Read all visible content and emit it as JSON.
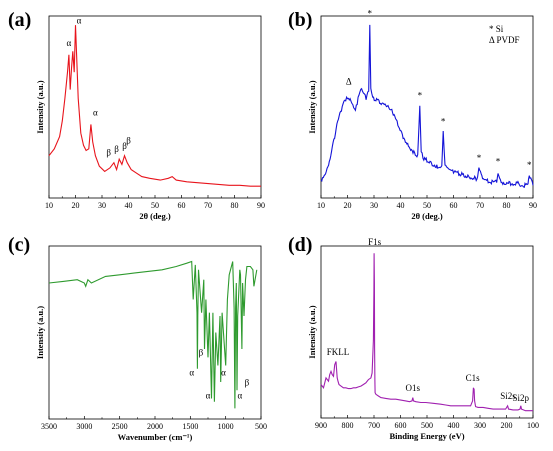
{
  "chart_data": [
    {
      "panel": "(a)",
      "type": "line",
      "xlabel": "2θ (deg.)",
      "ylabel": "Intensity (a.u.)",
      "xlim": [
        10,
        90
      ],
      "xticks": [
        "10",
        "20",
        "30",
        "40",
        "50",
        "60",
        "70",
        "80",
        "90"
      ],
      "color": "#e8141c",
      "series": [
        {
          "x": [
            10,
            12,
            14,
            15,
            16,
            17,
            17.5,
            18,
            18.5,
            19,
            19.5,
            20,
            20.4,
            21,
            22,
            23,
            24,
            25,
            25.8,
            26.5,
            27.5,
            29,
            31,
            33,
            34.5,
            35.5,
            36.5,
            37.5,
            38.5,
            39.5,
            41,
            43,
            45,
            48,
            52,
            55,
            56.5,
            58,
            62,
            66,
            70,
            74,
            78,
            82,
            86,
            90
          ],
          "y": [
            0.22,
            0.26,
            0.33,
            0.42,
            0.55,
            0.7,
            0.8,
            0.6,
            0.72,
            0.82,
            0.7,
            0.97,
            0.8,
            0.55,
            0.35,
            0.28,
            0.25,
            0.26,
            0.4,
            0.3,
            0.22,
            0.16,
            0.13,
            0.15,
            0.18,
            0.14,
            0.2,
            0.17,
            0.22,
            0.18,
            0.14,
            0.12,
            0.1,
            0.09,
            0.08,
            0.09,
            0.1,
            0.08,
            0.07,
            0.065,
            0.06,
            0.055,
            0.05,
            0.05,
            0.045,
            0.045
          ]
        }
      ],
      "annotations": [
        {
          "text": "α",
          "x": 17.5,
          "y": 0.85
        },
        {
          "text": "α",
          "x": 21.3,
          "y": 0.98
        },
        {
          "text": "α",
          "x": 27.5,
          "y": 0.45
        },
        {
          "text": "β",
          "x": 32.5,
          "y": 0.22
        },
        {
          "text": "β",
          "x": 35.5,
          "y": 0.24
        },
        {
          "text": "β",
          "x": 38.5,
          "y": 0.26
        },
        {
          "text": "β",
          "x": 40.0,
          "y": 0.29
        }
      ]
    },
    {
      "panel": "(b)",
      "type": "line",
      "xlabel": "2θ (deg.)",
      "ylabel": "Intensity (a.u.)",
      "xlim": [
        10,
        90
      ],
      "xticks": [
        "10",
        "20",
        "30",
        "40",
        "50",
        "60",
        "70",
        "80",
        "90"
      ],
      "color": "#1414d8",
      "legend": [
        "* Si",
        "Δ PVDF"
      ],
      "series": [
        {
          "x": [
            10,
            12,
            14,
            16,
            18,
            19,
            20,
            21,
            22,
            23,
            24,
            25,
            26,
            27,
            28,
            28.4,
            28.8,
            29.5,
            31,
            33,
            35,
            37,
            39,
            41,
            43,
            45,
            46.5,
            47.3,
            47.8,
            48.5,
            50,
            52,
            54,
            55.6,
            56.1,
            56.8,
            58,
            60,
            62,
            64,
            66,
            68,
            69.1,
            69.6,
            71,
            74,
            76.3,
            76.8,
            78,
            81,
            84,
            87,
            88.1,
            88.6,
            90
          ],
          "y": [
            0.08,
            0.13,
            0.24,
            0.4,
            0.5,
            0.54,
            0.55,
            0.55,
            0.52,
            0.48,
            0.55,
            0.6,
            0.58,
            0.55,
            0.6,
            0.98,
            0.62,
            0.55,
            0.54,
            0.52,
            0.5,
            0.47,
            0.4,
            0.33,
            0.28,
            0.24,
            0.22,
            0.5,
            0.24,
            0.21,
            0.19,
            0.17,
            0.16,
            0.16,
            0.35,
            0.16,
            0.14,
            0.13,
            0.12,
            0.11,
            0.1,
            0.09,
            0.09,
            0.15,
            0.08,
            0.07,
            0.07,
            0.13,
            0.07,
            0.06,
            0.06,
            0.05,
            0.05,
            0.11,
            0.05
          ]
        }
      ],
      "annotations": [
        {
          "text": "Δ",
          "x": 20.5,
          "y": 0.63
        },
        {
          "text": "*",
          "x": 28.4,
          "y": 1.02
        },
        {
          "text": "*",
          "x": 47.3,
          "y": 0.55
        },
        {
          "text": "*",
          "x": 56.1,
          "y": 0.4
        },
        {
          "text": "*",
          "x": 69.6,
          "y": 0.19
        },
        {
          "text": "*",
          "x": 76.8,
          "y": 0.17
        },
        {
          "text": "*",
          "x": 88.6,
          "y": 0.15
        }
      ]
    },
    {
      "panel": "(c)",
      "type": "line",
      "xlabel": "Wavenumber (cm⁻¹)",
      "ylabel": "Intensity (a.u.)",
      "xlim": [
        3500,
        500
      ],
      "xticks": [
        "3500",
        "3000",
        "2500",
        "2000",
        "1500",
        "1000",
        "500"
      ],
      "color": "#2e9a2e",
      "series": [
        {
          "x": [
            3500,
            3300,
            3100,
            3000,
            2980,
            2950,
            2900,
            2700,
            2500,
            2300,
            2100,
            1900,
            1700,
            1550,
            1480,
            1460,
            1430,
            1405,
            1400,
            1395,
            1385,
            1340,
            1310,
            1300,
            1280,
            1250,
            1230,
            1200,
            1180,
            1160,
            1140,
            1110,
            1080,
            1070,
            1050,
            1000,
            975,
            950,
            900,
            880,
            870,
            860,
            850,
            840,
            830,
            800,
            790,
            770,
            760,
            740,
            720,
            700,
            650,
            614,
            600,
            560
          ],
          "y": [
            0.8,
            0.81,
            0.82,
            0.8,
            0.78,
            0.82,
            0.8,
            0.84,
            0.85,
            0.86,
            0.87,
            0.88,
            0.9,
            0.92,
            0.93,
            0.7,
            0.91,
            0.62,
            0.28,
            0.6,
            0.88,
            0.62,
            0.82,
            0.4,
            0.7,
            0.35,
            0.62,
            0.1,
            0.62,
            0.08,
            0.5,
            0.3,
            0.6,
            0.2,
            0.62,
            0.3,
            0.7,
            0.85,
            0.93,
            0.65,
            0.04,
            0.65,
            0.8,
            0.15,
            0.6,
            0.88,
            0.85,
            0.4,
            0.8,
            0.6,
            0.82,
            0.9,
            0.9,
            0.88,
            0.78,
            0.88
          ]
        }
      ],
      "annotations": [
        {
          "text": "α",
          "x": 1480,
          "y": 0.24
        },
        {
          "text": "β",
          "x": 1350,
          "y": 0.36
        },
        {
          "text": "α",
          "x": 1250,
          "y": 0.1
        },
        {
          "text": "α",
          "x": 1030,
          "y": 0.24
        },
        {
          "text": "α",
          "x": 800,
          "y": 0.1
        },
        {
          "text": "β",
          "x": 700,
          "y": 0.18
        }
      ]
    },
    {
      "panel": "(d)",
      "type": "line",
      "xlabel": "Binding Energy (eV)",
      "ylabel": "Intensity (a.u.)",
      "xlim": [
        900,
        50
      ],
      "xticks": [
        "900",
        "800",
        "700",
        "600",
        "500",
        "400",
        "300",
        "200",
        "100"
      ],
      "color": "#a020b0",
      "series": [
        {
          "x": [
            900,
            890,
            880,
            870,
            865,
            860,
            855,
            850,
            845,
            840,
            835,
            832,
            828,
            820,
            810,
            800,
            790,
            780,
            770,
            760,
            750,
            740,
            730,
            720,
            710,
            700,
            695,
            690,
            688,
            687,
            686,
            685,
            684,
            683,
            680,
            670,
            660,
            640,
            620,
            600,
            580,
            560,
            545,
            535,
            532,
            529,
            520,
            500,
            480,
            450,
            420,
            400,
            380,
            350,
            320,
            300,
            292,
            289,
            286,
            284,
            280,
            270,
            250,
            230,
            210,
            200,
            180,
            160,
            152,
            148,
            130,
            110,
            102,
            99,
            96,
            80,
            60,
            50
          ],
          "y": [
            0.18,
            0.16,
            0.22,
            0.2,
            0.24,
            0.26,
            0.24,
            0.23,
            0.3,
            0.32,
            0.22,
            0.2,
            0.18,
            0.17,
            0.16,
            0.16,
            0.155,
            0.155,
            0.16,
            0.16,
            0.165,
            0.17,
            0.18,
            0.19,
            0.21,
            0.22,
            0.25,
            0.45,
            0.75,
            0.98,
            0.8,
            0.4,
            0.2,
            0.13,
            0.12,
            0.11,
            0.1,
            0.095,
            0.09,
            0.09,
            0.085,
            0.08,
            0.075,
            0.08,
            0.1,
            0.08,
            0.075,
            0.07,
            0.07,
            0.065,
            0.06,
            0.055,
            0.05,
            0.05,
            0.05,
            0.05,
            0.08,
            0.16,
            0.15,
            0.08,
            0.045,
            0.04,
            0.04,
            0.035,
            0.03,
            0.03,
            0.03,
            0.03,
            0.05,
            0.03,
            0.025,
            0.025,
            0.03,
            0.05,
            0.03,
            0.02,
            0.02,
            0.02
          ]
        }
      ],
      "annotations": [
        {
          "text": "FKLL",
          "x": 832,
          "y": 0.36
        },
        {
          "text": "F1s",
          "x": 685,
          "y": 1.03
        },
        {
          "text": "O1s",
          "x": 532,
          "y": 0.14
        },
        {
          "text": "C1s",
          "x": 292,
          "y": 0.2
        },
        {
          "text": "Si2s",
          "x": 150,
          "y": 0.09
        },
        {
          "text": "Si2p",
          "x": 99,
          "y": 0.08
        }
      ]
    }
  ]
}
